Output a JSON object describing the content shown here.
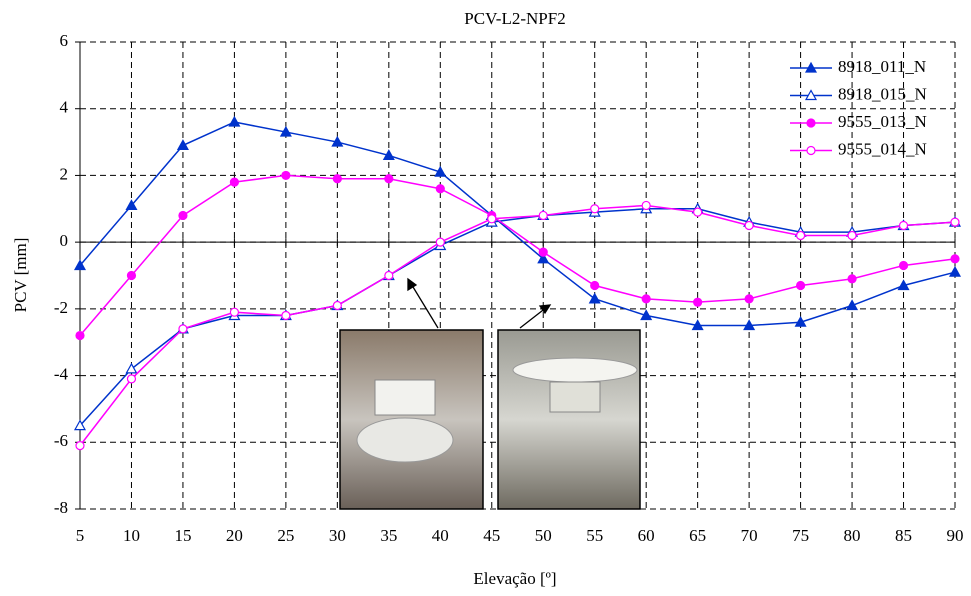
{
  "chart_data": {
    "type": "line",
    "title": "PCV-L2-NPF2",
    "x_label": "Elevação [º]",
    "y_label": "PCV [mm]",
    "x": [
      5,
      10,
      15,
      20,
      25,
      30,
      35,
      40,
      45,
      50,
      55,
      60,
      65,
      70,
      75,
      80,
      85,
      90
    ],
    "xlim": [
      5,
      90
    ],
    "xticks": [
      5,
      10,
      15,
      20,
      25,
      30,
      35,
      40,
      45,
      50,
      55,
      60,
      65,
      70,
      75,
      80,
      85,
      90
    ],
    "ylim": [
      -8,
      6
    ],
    "yticks": [
      -8,
      -6,
      -4,
      -2,
      0,
      2,
      4,
      6
    ],
    "grid": true,
    "legend": "top-right",
    "series": [
      {
        "name": "8918_011_N",
        "color": "#0033cc",
        "marker": "triangle",
        "values": [
          -0.7,
          1.1,
          2.9,
          3.6,
          3.3,
          3.0,
          2.6,
          2.1,
          0.8,
          -0.5,
          -1.7,
          -2.2,
          -2.5,
          -2.5,
          -2.4,
          -1.9,
          -1.3,
          -0.9
        ]
      },
      {
        "name": "8918_015_N",
        "color": "#0033cc",
        "marker": "triangle-open",
        "values": [
          -5.5,
          -3.8,
          -2.6,
          -2.2,
          -2.2,
          -1.9,
          -1.0,
          -0.1,
          0.6,
          0.8,
          0.9,
          1.0,
          1.0,
          0.6,
          0.3,
          0.3,
          0.5,
          0.6
        ]
      },
      {
        "name": "9555_013_N",
        "color": "#ff00ff",
        "marker": "circle",
        "values": [
          -2.8,
          -1.0,
          0.8,
          1.8,
          2.0,
          1.9,
          1.9,
          1.6,
          0.8,
          -0.3,
          -1.3,
          -1.7,
          -1.8,
          -1.7,
          -1.3,
          -1.1,
          -0.7,
          -0.5
        ]
      },
      {
        "name": "9555_014_N",
        "color": "#ff00ff",
        "marker": "circle-open",
        "values": [
          -6.1,
          -4.1,
          -2.6,
          -2.1,
          -2.2,
          -1.9,
          -1.0,
          0.0,
          0.7,
          0.8,
          1.0,
          1.1,
          0.9,
          0.5,
          0.2,
          0.2,
          0.5,
          0.6
        ]
      }
    ]
  }
}
